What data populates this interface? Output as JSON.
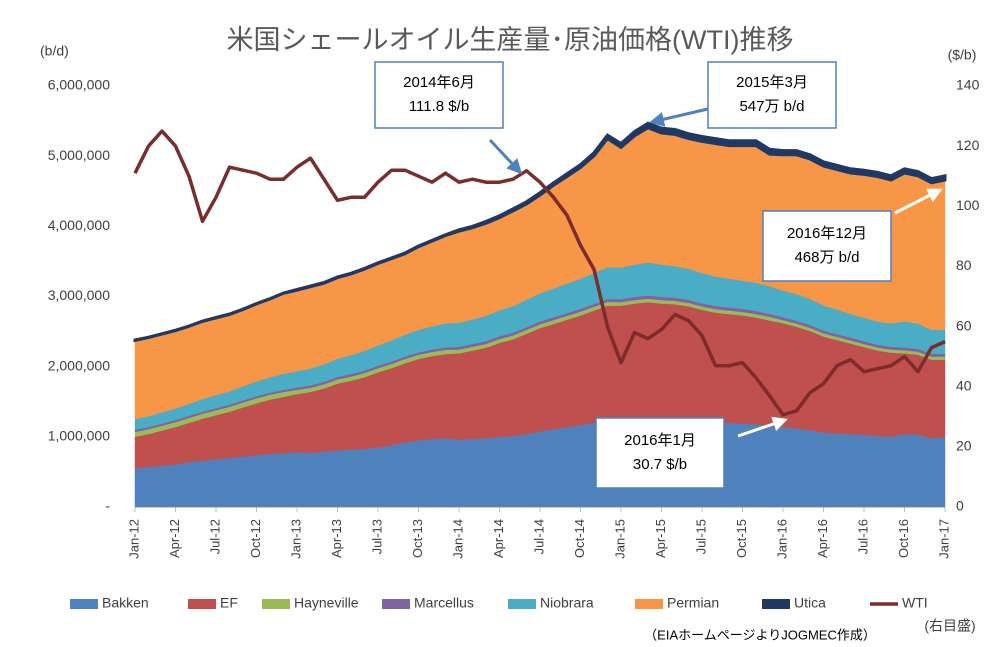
{
  "chart_data": {
    "type": "stacked_area_line",
    "title": "米国シェールオイル生産量･原油価格(WTI)推移",
    "y_label": "(b/d)",
    "y2_label": "($/b)",
    "categories": [
      "Jan-12",
      null,
      null,
      "Apr-12",
      null,
      null,
      "Jul-12",
      null,
      null,
      "Oct-12",
      null,
      null,
      "Jan-13",
      null,
      null,
      "Apr-13",
      null,
      null,
      "Jul-13",
      null,
      null,
      "Oct-13",
      null,
      null,
      "Jan-14",
      null,
      null,
      "Apr-14",
      null,
      null,
      "Jul-14",
      null,
      null,
      "Oct-14",
      null,
      null,
      "Jan-15",
      null,
      null,
      "Apr-15",
      null,
      null,
      "Jul-15",
      null,
      null,
      "Oct-15",
      null,
      null,
      "Jan-16",
      null,
      null,
      "Apr-16",
      null,
      null,
      "Jul-16",
      null,
      null,
      "Oct-16",
      null,
      null,
      "Jan-17"
    ],
    "series": [
      {
        "name": "Bakken",
        "color": "#4f81bd",
        "values": [
          550000,
          570000,
          590000,
          610000,
          640000,
          660000,
          680000,
          700000,
          720000,
          740000,
          760000,
          770000,
          780000,
          770000,
          790000,
          810000,
          820000,
          830000,
          850000,
          880000,
          920000,
          950000,
          970000,
          980000,
          960000,
          970000,
          980000,
          1000000,
          1010000,
          1040000,
          1080000,
          1110000,
          1140000,
          1170000,
          1200000,
          1220000,
          1190000,
          1200000,
          1200000,
          1210000,
          1210000,
          1210000,
          1210000,
          1200000,
          1200000,
          1190000,
          1180000,
          1160000,
          1140000,
          1120000,
          1100000,
          1060000,
          1050000,
          1040000,
          1030000,
          1010000,
          1000000,
          1040000,
          1030000,
          980000,
          1000000
        ]
      },
      {
        "name": "EF",
        "color": "#c0504d",
        "values": [
          450000,
          470000,
          500000,
          530000,
          560000,
          600000,
          630000,
          660000,
          700000,
          740000,
          770000,
          800000,
          830000,
          870000,
          900000,
          950000,
          980000,
          1020000,
          1070000,
          1100000,
          1130000,
          1160000,
          1180000,
          1200000,
          1230000,
          1260000,
          1290000,
          1340000,
          1380000,
          1430000,
          1470000,
          1500000,
          1530000,
          1560000,
          1600000,
          1650000,
          1680000,
          1700000,
          1720000,
          1690000,
          1680000,
          1650000,
          1600000,
          1570000,
          1550000,
          1540000,
          1520000,
          1500000,
          1480000,
          1450000,
          1410000,
          1370000,
          1330000,
          1290000,
          1250000,
          1220000,
          1200000,
          1150000,
          1140000,
          1120000,
          1100000
        ]
      },
      {
        "name": "Hayneville",
        "color": "#9bbb59",
        "values": [
          70000,
          70000,
          70000,
          70000,
          70000,
          70000,
          70000,
          70000,
          70000,
          70000,
          70000,
          70000,
          60000,
          60000,
          60000,
          60000,
          60000,
          60000,
          60000,
          60000,
          60000,
          60000,
          60000,
          60000,
          55000,
          55000,
          55000,
          55000,
          55000,
          55000,
          55000,
          55000,
          55000,
          55000,
          55000,
          55000,
          50000,
          50000,
          50000,
          50000,
          50000,
          50000,
          50000,
          50000,
          50000,
          50000,
          50000,
          50000,
          45000,
          45000,
          45000,
          45000,
          45000,
          45000,
          45000,
          45000,
          45000,
          45000,
          45000,
          45000,
          45000
        ]
      },
      {
        "name": "Marcellus",
        "color": "#8064a2",
        "values": [
          30000,
          30000,
          30000,
          30000,
          30000,
          30000,
          30000,
          30000,
          30000,
          30000,
          30000,
          30000,
          35000,
          35000,
          35000,
          35000,
          35000,
          35000,
          35000,
          35000,
          35000,
          35000,
          35000,
          35000,
          40000,
          40000,
          40000,
          40000,
          40000,
          40000,
          40000,
          40000,
          40000,
          40000,
          40000,
          40000,
          45000,
          45000,
          45000,
          45000,
          45000,
          45000,
          45000,
          45000,
          45000,
          45000,
          45000,
          45000,
          40000,
          40000,
          40000,
          40000,
          40000,
          40000,
          40000,
          40000,
          40000,
          40000,
          40000,
          40000,
          40000
        ]
      },
      {
        "name": "Niobrara",
        "color": "#4bacc6",
        "values": [
          150000,
          155000,
          160000,
          165000,
          170000,
          180000,
          185000,
          190000,
          200000,
          210000,
          220000,
          230000,
          230000,
          240000,
          250000,
          260000,
          270000,
          280000,
          290000,
          300000,
          310000,
          320000,
          330000,
          340000,
          340000,
          350000,
          360000,
          370000,
          380000,
          390000,
          400000,
          410000,
          420000,
          430000,
          440000,
          450000,
          450000,
          460000,
          470000,
          460000,
          450000,
          440000,
          430000,
          420000,
          410000,
          400000,
          400000,
          390000,
          380000,
          380000,
          370000,
          360000,
          350000,
          340000,
          330000,
          330000,
          330000,
          370000,
          360000,
          340000,
          340000
        ]
      },
      {
        "name": "Permian",
        "color": "#f79646",
        "values": [
          1125000,
          1120000,
          1115000,
          1110000,
          1105000,
          1105000,
          1100000,
          1095000,
          1095000,
          1105000,
          1115000,
          1145000,
          1155000,
          1165000,
          1155000,
          1155000,
          1155000,
          1165000,
          1165000,
          1165000,
          1155000,
          1185000,
          1215000,
          1255000,
          1305000,
          1305000,
          1320000,
          1320000,
          1355000,
          1365000,
          1400000,
          1470000,
          1525000,
          1585000,
          1670000,
          1835000,
          1710000,
          1835000,
          1920000,
          1875000,
          1875000,
          1855000,
          1875000,
          1895000,
          1895000,
          1925000,
          1955000,
          1885000,
          1935000,
          1985000,
          1995000,
          1985000,
          1995000,
          2005000,
          2045000,
          2065000,
          2045000,
          2115000,
          2105000,
          2095000,
          2135000
        ]
      },
      {
        "name": "Utica",
        "color": "#1f3864",
        "values": [
          5000,
          5000,
          5000,
          5000,
          5000,
          5000,
          5000,
          5000,
          5000,
          5000,
          5000,
          5000,
          10000,
          10000,
          10000,
          10000,
          10000,
          10000,
          10000,
          10000,
          10000,
          10000,
          10000,
          10000,
          20000,
          20000,
          25000,
          25000,
          30000,
          30000,
          35000,
          35000,
          40000,
          40000,
          45000,
          50000,
          55000,
          60000,
          65000,
          70000,
          70000,
          70000,
          70000,
          70000,
          70000,
          70000,
          70000,
          70000,
          60000,
          60000,
          60000,
          60000,
          60000,
          60000,
          60000,
          60000,
          60000,
          60000,
          60000,
          60000,
          60000
        ]
      },
      {
        "name": "WTI",
        "color": "#7b2c2c",
        "axis": "y2",
        "values": [
          111,
          120,
          125,
          120,
          110,
          95,
          103,
          113,
          112,
          111,
          109,
          109,
          113,
          116,
          109,
          102,
          103,
          103,
          108,
          112,
          112,
          110,
          108,
          111,
          108,
          109,
          108,
          108,
          109,
          111.8,
          108,
          103,
          97,
          87,
          79,
          60,
          48,
          58,
          56,
          59,
          64,
          62,
          57,
          47,
          47,
          48,
          43,
          37,
          30.7,
          32,
          38,
          41,
          47,
          49,
          45,
          46,
          47,
          50,
          45,
          53,
          55
        ]
      }
    ],
    "ylim": [
      0,
      6000000
    ],
    "yticks": [
      {
        "value": 0,
        "label": "-"
      },
      {
        "value": 1000000,
        "label": "1,000,000"
      },
      {
        "value": 2000000,
        "label": "2,000,000"
      },
      {
        "value": 3000000,
        "label": "3,000,000"
      },
      {
        "value": 4000000,
        "label": "4,000,000"
      },
      {
        "value": 5000000,
        "label": "5,000,000"
      },
      {
        "value": 6000000,
        "label": "6,000,000"
      }
    ],
    "y2lim": [
      0,
      140
    ],
    "y2ticks": [
      0,
      20,
      40,
      60,
      80,
      100,
      120,
      140
    ],
    "annotations": [
      {
        "lines": [
          "2014年6月",
          "111.8 $/b"
        ]
      },
      {
        "lines": [
          "2015年3月",
          "547万 b/d"
        ]
      },
      {
        "lines": [
          "2016年12月",
          "468万 b/d"
        ]
      },
      {
        "lines": [
          "2016年1月",
          "30.7 $/b"
        ]
      }
    ],
    "y2_note": "(右目盛)",
    "source": "（EIAホームページよりJOGMEC作成）",
    "legend": "bottom"
  }
}
